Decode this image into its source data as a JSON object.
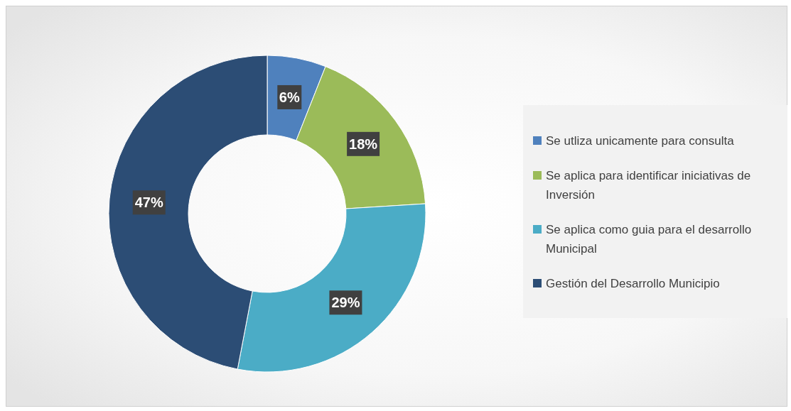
{
  "chart_data": {
    "type": "donut",
    "categories": [
      "Se utliza unicamente para consulta",
      "Se aplica para identificar iniciativas de Inversión",
      "Se aplica como guia para el desarrollo Municipal",
      "Gestión del Desarrollo Municipio"
    ],
    "values": [
      6,
      18,
      29,
      47
    ],
    "value_labels": [
      "6%",
      "18%",
      "29%",
      "47%"
    ],
    "colors": [
      "#4f81bd",
      "#9bbb59",
      "#4bacc6",
      "#2c4d75"
    ],
    "legend": "right"
  }
}
